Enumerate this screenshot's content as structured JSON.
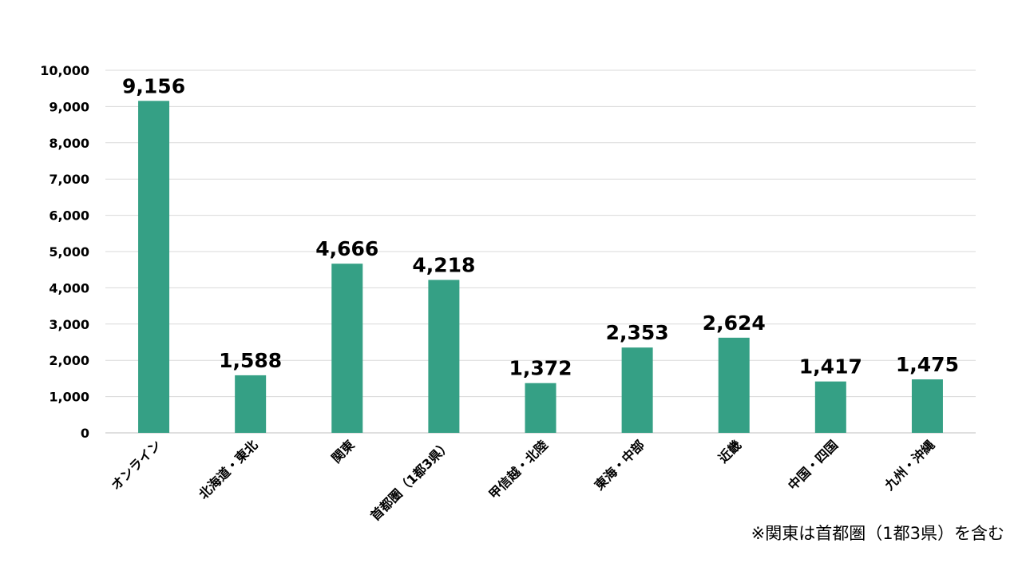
{
  "chart_data": {
    "type": "bar",
    "title": "",
    "xlabel": "",
    "ylabel": "",
    "categories": [
      "オンライン",
      "北海道・東北",
      "関東",
      "首都圏（1都3県）",
      "甲信越・北陸",
      "東海・中部",
      "近畿",
      "中国・四国",
      "九州・沖縄"
    ],
    "values": [
      9156,
      1588,
      4666,
      4218,
      1372,
      2353,
      2624,
      1417,
      1475
    ],
    "data_labels": [
      "9,156",
      "1,588",
      "4,666",
      "4,218",
      "1,372",
      "2,353",
      "2,624",
      "1,417",
      "1,475"
    ],
    "ylim": [
      0,
      10000
    ],
    "yticks": [
      0,
      1000,
      2000,
      3000,
      4000,
      5000,
      6000,
      7000,
      8000,
      9000,
      10000
    ],
    "ytick_labels": [
      "0",
      "1,000",
      "2,000",
      "3,000",
      "4,000",
      "5,000",
      "6,000",
      "7,000",
      "8,000",
      "9,000",
      "10,000"
    ],
    "grid": true,
    "legend": "none",
    "bar_color": "#35a085"
  },
  "footnote": "※関東は首都圏（1都3県）を含む"
}
